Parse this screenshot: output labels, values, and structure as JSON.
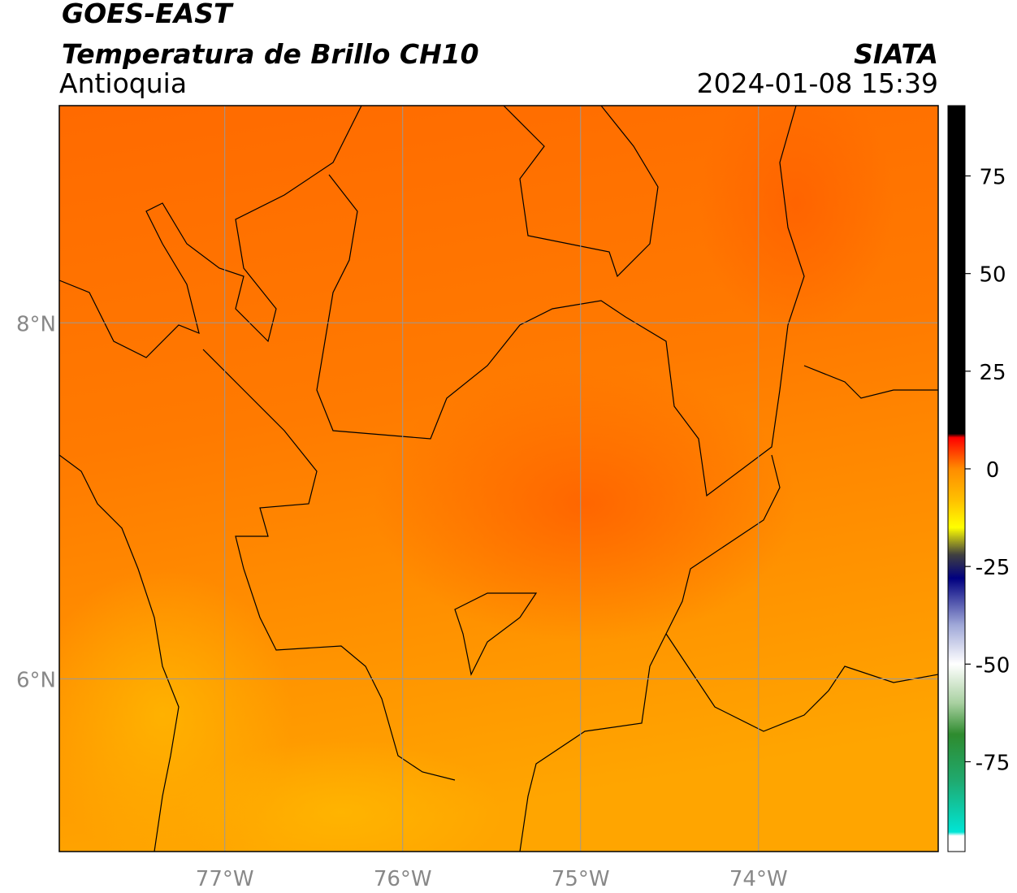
{
  "header": {
    "title": "GOES-EAST",
    "subtitle": "Temperatura de Brillo CH10",
    "region": "Antioquia",
    "source": "SIATA",
    "timestamp": "2024-01-08 15:39"
  },
  "map": {
    "xlim": [
      -77.93,
      -72.99
    ],
    "ylim": [
      5.03,
      9.22
    ],
    "xticks": [
      {
        "value": -77,
        "label": "77°W"
      },
      {
        "value": -76,
        "label": "76°W"
      },
      {
        "value": -75,
        "label": "75°W"
      },
      {
        "value": -74,
        "label": "74°W"
      }
    ],
    "yticks": [
      {
        "value": 6,
        "label": "6°N"
      },
      {
        "value": 8,
        "label": "8°N"
      }
    ],
    "grid": true,
    "grid_color": "#999999"
  },
  "colorbar": {
    "lim": [
      -98,
      93
    ],
    "ticks": [
      -75,
      -50,
      -25,
      0,
      25,
      50,
      75
    ],
    "colormap": [
      {
        "value": -98,
        "color": "#ffffff"
      },
      {
        "value": -94,
        "color": "#ffffff"
      },
      {
        "value": -93,
        "color": "#00e5d5"
      },
      {
        "value": -80,
        "color": "#1faa70"
      },
      {
        "value": -68,
        "color": "#2e8b2e"
      },
      {
        "value": -60,
        "color": "#a8d0a0"
      },
      {
        "value": -50,
        "color": "#ffffff"
      },
      {
        "value": -40,
        "color": "#a0a8d8"
      },
      {
        "value": -28,
        "color": "#000080"
      },
      {
        "value": -22,
        "color": "#404040"
      },
      {
        "value": -15,
        "color": "#ffff00"
      },
      {
        "value": -8,
        "color": "#ffc000"
      },
      {
        "value": 0,
        "color": "#ff8c00"
      },
      {
        "value": 8,
        "color": "#ff0000"
      },
      {
        "value": 9,
        "color": "#000000"
      },
      {
        "value": 93,
        "color": "#000000"
      }
    ]
  }
}
